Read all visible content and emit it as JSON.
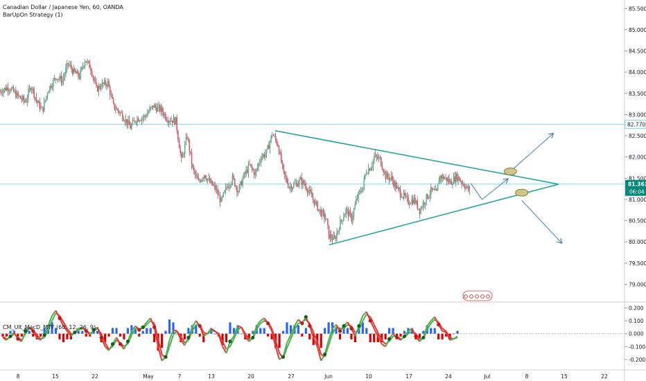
{
  "header": {
    "symbol_line": "Canadian Dollar / Japanese Yen, 60, OANDA",
    "strategy_line": "BarUpOn Strategy (1)"
  },
  "indicator": {
    "label": "CM_Ult_MacD_MTF (60, 12, 26, 9)"
  },
  "badges": {
    "price": "81.363",
    "countdown": "06:04",
    "level": "82.770"
  },
  "colors": {
    "up_candle": "#53b987",
    "down_candle": "#eb4d5c",
    "wick": "#555555",
    "trendline": "#26a69a",
    "hline": "#80deea",
    "arrow": "#4a7bb5",
    "macd_green": "#4caf50",
    "macd_red": "#e53935",
    "hist_blue": "#2962ff",
    "hist_red": "#d50000",
    "price_badge": "#00897b"
  },
  "chart_data": [
    {
      "type": "candlestick",
      "title": "Canadian Dollar / Japanese Yen, 60, OANDA",
      "ylim": [
        78.6,
        85.7
      ],
      "y_ticks": [
        "85.500",
        "85.000",
        "84.500",
        "84.000",
        "83.500",
        "83.000",
        "82.500",
        "82.000",
        "81.500",
        "81.000",
        "80.500",
        "80.000",
        "79.500",
        "79.000"
      ],
      "x_ticks": [
        "8",
        "15",
        "22",
        "May",
        "7",
        "13",
        "20",
        "27",
        "Jun",
        "10",
        "17",
        "24",
        "Jul",
        "8",
        "15",
        "22"
      ],
      "series_path": [
        [
          0,
          83.55
        ],
        [
          3,
          83.65
        ],
        [
          6,
          83.45
        ],
        [
          9,
          83.3
        ],
        [
          11,
          83.7
        ],
        [
          13,
          83.3
        ],
        [
          15,
          83.1
        ],
        [
          17,
          83.6
        ],
        [
          20,
          83.9
        ],
        [
          22,
          83.8
        ],
        [
          24,
          84.2
        ],
        [
          26,
          84.0
        ],
        [
          28,
          83.9
        ],
        [
          30,
          84.3
        ],
        [
          32,
          84.1
        ],
        [
          34,
          83.6
        ],
        [
          36,
          83.7
        ],
        [
          38,
          83.75
        ],
        [
          40,
          83.2
        ],
        [
          43,
          83.0
        ],
        [
          46,
          82.7
        ],
        [
          48,
          82.9
        ],
        [
          51,
          82.95
        ],
        [
          54,
          83.2
        ],
        [
          57,
          83.1
        ],
        [
          59,
          82.9
        ],
        [
          62,
          82.85
        ],
        [
          64,
          81.9
        ],
        [
          66,
          82.5
        ],
        [
          68,
          81.7
        ],
        [
          70,
          81.4
        ],
        [
          72,
          81.6
        ],
        [
          74,
          81.4
        ],
        [
          76,
          81.25
        ],
        [
          78,
          80.95
        ],
        [
          80,
          81.3
        ],
        [
          82,
          81.5
        ],
        [
          84,
          81.2
        ],
        [
          86,
          81.55
        ],
        [
          88,
          81.8
        ],
        [
          90,
          81.6
        ],
        [
          92,
          82.0
        ],
        [
          94,
          82.1
        ],
        [
          96,
          82.55
        ],
        [
          98,
          82.3
        ],
        [
          100,
          81.6
        ],
        [
          102,
          81.3
        ],
        [
          104,
          81.35
        ],
        [
          106,
          81.45
        ],
        [
          108,
          81.3
        ],
        [
          110,
          81.05
        ],
        [
          113,
          80.7
        ],
        [
          115,
          80.55
        ],
        [
          116,
          80.15
        ],
        [
          118,
          80.05
        ],
        [
          120,
          80.45
        ],
        [
          122,
          80.75
        ],
        [
          124,
          80.55
        ],
        [
          126,
          81.05
        ],
        [
          128,
          81.3
        ],
        [
          129,
          81.65
        ],
        [
          131,
          81.8
        ],
        [
          132,
          82.0
        ],
        [
          134,
          81.95
        ],
        [
          136,
          81.55
        ],
        [
          138,
          81.5
        ],
        [
          140,
          81.25
        ],
        [
          142,
          81.1
        ],
        [
          144,
          80.95
        ],
        [
          146,
          81.0
        ],
        [
          148,
          80.75
        ],
        [
          150,
          81.0
        ],
        [
          152,
          81.2
        ],
        [
          154,
          81.15
        ],
        [
          155,
          81.55
        ],
        [
          157,
          81.5
        ],
        [
          159,
          81.4
        ],
        [
          161,
          81.55
        ],
        [
          163,
          81.4
        ],
        [
          165,
          81.25
        ],
        [
          166,
          81.1
        ]
      ],
      "x_range": [
        0,
        220
      ],
      "annotations": {
        "trendlines": [
          {
            "from": [
              97,
              82.62
            ],
            "to": [
              197,
              81.36
            ]
          },
          {
            "from": [
              116,
              79.93
            ],
            "to": [
              197,
              81.36
            ]
          }
        ],
        "horizontal_lines": [
          82.77,
          81.363
        ],
        "arrows": [
          {
            "path": [
              [
                166,
                81.38
              ],
              [
                170,
                81.0
              ],
              [
                179,
                81.48
              ]
            ]
          },
          {
            "path": [
              [
                180,
                81.66
              ],
              [
                195,
                82.55
              ]
            ]
          },
          {
            "path": [
              [
                184,
                80.98
              ],
              [
                198,
                79.98
              ]
            ]
          }
        ],
        "ellipses": [
          [
            180,
            81.66
          ],
          [
            184,
            81.16
          ]
        ]
      }
    },
    {
      "type": "bar",
      "title": "CM_Ult_MacD_MTF (60, 12, 26, 9)",
      "ylim": [
        -0.27,
        0.24
      ],
      "y_ticks": [
        "0.200",
        "0.100",
        "0.000",
        "-0.100",
        "-0.200"
      ],
      "series": [
        {
          "name": "MacD",
          "values": [
            -0.03,
            -0.05,
            -0.02,
            0.01,
            -0.04,
            -0.06,
            0.02,
            0.05,
            0.02,
            -0.03,
            -0.05,
            -0.01,
            0.06,
            0.14,
            0.18,
            0.12,
            0.06,
            0.02,
            -0.02,
            0.01,
            0.04,
            0.05,
            0.02,
            -0.01,
            0.03,
            0.05,
            -0.03,
            -0.1,
            -0.13,
            -0.08,
            -0.03,
            -0.08,
            -0.12,
            -0.06,
            0.02,
            0.06,
            0.03,
            0.05,
            0.09,
            0.12,
            0.05,
            -0.1,
            -0.21,
            -0.18,
            -0.05,
            0.03,
            0.02,
            -0.05,
            -0.09,
            -0.03,
            0.05,
            0.1,
            0.06,
            -0.02,
            0.0,
            0.04,
            0.02,
            -0.01,
            -0.1,
            -0.15,
            -0.06,
            -0.02,
            0.06,
            0.05,
            -0.02,
            -0.06,
            -0.03,
            0.06,
            0.1,
            0.12,
            0.08,
            0.02,
            -0.1,
            -0.2,
            -0.18,
            -0.07,
            -0.01,
            0.06,
            0.11,
            0.08,
            0.13,
            0.06,
            -0.03,
            -0.1,
            -0.21,
            -0.16,
            -0.05,
            0.04,
            0.07,
            0.02,
            0.06,
            0.09,
            0.04,
            -0.02,
            0.06,
            0.14,
            0.17,
            0.1,
            0.04,
            -0.02,
            -0.08,
            -0.1,
            -0.04,
            0.0,
            -0.03,
            -0.05,
            -0.02,
            0.02,
            0.04,
            -0.02,
            -0.06,
            -0.03,
            0.06,
            0.1,
            0.13,
            0.07,
            0.02,
            0.01,
            -0.05,
            -0.04,
            -0.02
          ]
        },
        {
          "name": "Signal",
          "values": [
            -0.02,
            -0.04,
            -0.03,
            0.0,
            -0.03,
            -0.05,
            0.0,
            0.04,
            0.03,
            -0.01,
            -0.04,
            -0.03,
            0.03,
            0.1,
            0.16,
            0.14,
            0.09,
            0.04,
            0.0,
            0.0,
            0.03,
            0.04,
            0.03,
            0.0,
            0.02,
            0.04,
            0.0,
            -0.07,
            -0.12,
            -0.1,
            -0.05,
            -0.07,
            -0.1,
            -0.08,
            -0.01,
            0.04,
            0.04,
            0.04,
            0.07,
            0.1,
            0.08,
            -0.04,
            -0.16,
            -0.19,
            -0.1,
            -0.01,
            0.02,
            -0.02,
            -0.07,
            -0.05,
            0.02,
            0.07,
            0.07,
            0.01,
            0.0,
            0.02,
            0.02,
            0.0,
            -0.06,
            -0.12,
            -0.1,
            -0.04,
            0.03,
            0.05,
            0.0,
            -0.04,
            -0.04,
            0.03,
            0.08,
            0.1,
            0.09,
            0.04,
            -0.05,
            -0.15,
            -0.19,
            -0.11,
            -0.04,
            0.03,
            0.08,
            0.09,
            0.11,
            0.08,
            0.01,
            -0.06,
            -0.16,
            -0.18,
            -0.09,
            0.0,
            0.05,
            0.04,
            0.04,
            0.07,
            0.06,
            0.01,
            0.03,
            0.1,
            0.15,
            0.13,
            0.07,
            0.01,
            -0.05,
            -0.08,
            -0.06,
            -0.02,
            -0.02,
            -0.04,
            -0.03,
            0.0,
            0.02,
            0.0,
            -0.04,
            -0.04,
            0.03,
            0.08,
            0.11,
            0.09,
            0.04,
            0.02,
            -0.03,
            -0.04,
            -0.03
          ]
        }
      ]
    }
  ]
}
